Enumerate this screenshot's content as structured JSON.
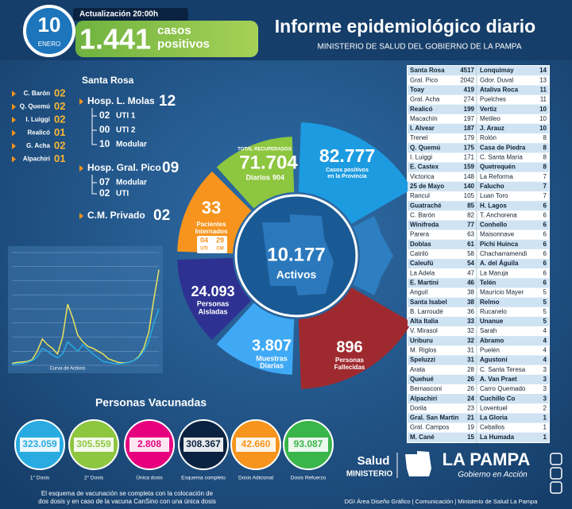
{
  "header": {
    "day": "10",
    "month": "ENERO",
    "update": "Actualización 20:00h",
    "cases": "1.441",
    "cases_label": [
      "casos",
      "positivos"
    ],
    "title": "Informe epidemiológico diario",
    "subtitle": "MINISTERIO DE SALUD DEL GOBIERNO DE LA PAMPA"
  },
  "santa_rosa": {
    "title": "Santa Rosa",
    "referrals": [
      {
        "place": "C. Barón",
        "count": "02"
      },
      {
        "place": "Q. Quemú",
        "count": "02"
      },
      {
        "place": "I. Luiggi",
        "count": "02"
      },
      {
        "place": "Realicó",
        "count": "01"
      },
      {
        "place": "G. Acha",
        "count": "02"
      },
      {
        "place": "Alpachiri",
        "count": "01"
      }
    ],
    "hospitals": [
      {
        "name": "Hosp. L. Molas",
        "count": "12",
        "units": [
          {
            "count": "02",
            "name": "UTI 1"
          },
          {
            "count": "00",
            "name": "UTI 2"
          },
          {
            "count": "10",
            "name": "Modular"
          }
        ]
      },
      {
        "name": "Hosp. Gral. Pico",
        "count": "09",
        "units": [
          {
            "count": "07",
            "name": "Modular"
          },
          {
            "count": "02",
            "name": "UTI"
          }
        ]
      },
      {
        "name": "C.M. Privado",
        "count": "02",
        "units": []
      }
    ]
  },
  "wheel": {
    "active": {
      "value": "10.177",
      "label": "Activos"
    },
    "recovered": {
      "label": "TOTAL RECUPERADOS",
      "value": "71.704",
      "daily_label": "Diarios",
      "daily": "904"
    },
    "positives": {
      "value": "82.777",
      "label": [
        "Casos positivos",
        "en la Provincia"
      ]
    },
    "hospitalized": {
      "value": "33",
      "label": [
        "Pacientes",
        "Internados"
      ],
      "uti": "04",
      "uti_label": "UTI",
      "cm": "29",
      "cm_label": "CM"
    },
    "isolated": {
      "value": "24.093",
      "label": [
        "Personas",
        "Aisladas"
      ]
    },
    "samples": {
      "value": "3.807",
      "label": [
        "Muestras",
        "Diarias"
      ]
    },
    "deaths": {
      "value": "896",
      "label": [
        "Personas",
        "Fallecidas"
      ]
    }
  },
  "localities": {
    "columns": [
      [
        [
          "Santa Rosa",
          4517
        ],
        [
          "Gral. Pico",
          2042
        ],
        [
          "Toay",
          419
        ],
        [
          "Gral. Acha",
          274
        ],
        [
          "Realicó",
          199
        ],
        [
          "Macachín",
          197
        ],
        [
          "I. Alvear",
          187
        ],
        [
          "Trenel",
          179
        ],
        [
          "Q. Quemú",
          175
        ],
        [
          "I. Luiggi",
          171
        ],
        [
          "E. Castex",
          159
        ],
        [
          "Victorica",
          148
        ],
        [
          "25 de Mayo",
          140
        ],
        [
          "Rancul",
          105
        ],
        [
          "Guatraché",
          85
        ],
        [
          "C. Barón",
          82
        ],
        [
          "Winifreda",
          77
        ],
        [
          "Parera",
          63
        ],
        [
          "Doblas",
          61
        ],
        [
          "Catriló",
          58
        ],
        [
          "Caleufú",
          54
        ],
        [
          "La Adela",
          47
        ],
        [
          "E. Martini",
          46
        ],
        [
          "Anguil",
          38
        ],
        [
          "Santa Isabel",
          38
        ],
        [
          "B. Larroudé",
          36
        ],
        [
          "Alta Italia",
          33
        ],
        [
          "V. Mirasol",
          32
        ],
        [
          "Uriburu",
          32
        ],
        [
          "M. Riglos",
          31
        ],
        [
          "Speluzzi",
          31
        ],
        [
          "Arata",
          28
        ],
        [
          "Quehué",
          26
        ],
        [
          "Bernasconi",
          26
        ],
        [
          "Alpachiri",
          24
        ],
        [
          "Dorila",
          23
        ],
        [
          "Gral. San Martín",
          21
        ],
        [
          "Gral. Campos",
          19
        ],
        [
          "M. Cané",
          15
        ]
      ],
      [
        [
          "Lonquimay",
          14
        ],
        [
          "Gdor. Duval",
          13
        ],
        [
          "Ataliva Roca",
          11
        ],
        [
          "Puelches",
          11
        ],
        [
          "Vertiz",
          10
        ],
        [
          "Metileo",
          10
        ],
        [
          "J. Arauz",
          10
        ],
        [
          "Rolón",
          8
        ],
        [
          "Casa de Piedra",
          8
        ],
        [
          "C. Santa María",
          8
        ],
        [
          "Quetrequén",
          8
        ],
        [
          "La Reforma",
          7
        ],
        [
          "Falucho",
          7
        ],
        [
          "Luan Toro",
          7
        ],
        [
          "H. Lagos",
          6
        ],
        [
          "T. Anchorena",
          6
        ],
        [
          "Conhello",
          6
        ],
        [
          "Maisonnave",
          6
        ],
        [
          "Pichi Huinca",
          6
        ],
        [
          "Chacharramendi",
          6
        ],
        [
          "A. del Águila",
          6
        ],
        [
          "La Maruja",
          6
        ],
        [
          "Telén",
          6
        ],
        [
          "Maurício Mayer",
          5
        ],
        [
          "Relmo",
          5
        ],
        [
          "Rucanelo",
          5
        ],
        [
          "Unanue",
          5
        ],
        [
          "Sarah",
          4
        ],
        [
          "Abramo",
          4
        ],
        [
          "Puelén",
          4
        ],
        [
          "Agustoni",
          4
        ],
        [
          "C. Santa Teresa",
          3
        ],
        [
          "A. Van Praet",
          3
        ],
        [
          "Carro Quemado",
          3
        ],
        [
          "Cuchillo Co",
          3
        ],
        [
          "Loventuel",
          2
        ],
        [
          "La Gloria",
          1
        ],
        [
          "Ceballos",
          1
        ],
        [
          "La Humada",
          1
        ]
      ]
    ]
  },
  "chart_data": {
    "type": "line",
    "title": "Curva de Activos",
    "ylim": [
      0,
      12000
    ],
    "series": [
      {
        "color": "#e8e35a",
        "values": [
          200,
          300,
          350,
          400,
          600,
          1500,
          2800,
          2200,
          1800,
          1200,
          3000,
          6500,
          5000,
          3200,
          2500,
          2000,
          1800,
          1500,
          1200,
          700,
          500,
          300,
          250,
          300,
          500,
          900,
          1800,
          3500,
          7000,
          10177
        ]
      },
      {
        "color": "#29abe2",
        "values": [
          100,
          150,
          200,
          300,
          500,
          900,
          1800,
          1500,
          1100,
          800,
          1200,
          2500,
          2000,
          1500,
          2200,
          1700,
          1200,
          800,
          400,
          300,
          200,
          150,
          200,
          300,
          500,
          800,
          1500,
          2500,
          4500,
          6000
        ]
      }
    ]
  },
  "vaccination": {
    "title": "Personas Vacunadas",
    "doses": [
      {
        "value": "323.059",
        "label": "1° Dosis",
        "color": "#29abe2"
      },
      {
        "value": "305.559",
        "label": "2° Dosis",
        "color": "#8dc63f"
      },
      {
        "value": "2.808",
        "label": "Única dosis",
        "color": "#e6007e"
      },
      {
        "value": "308.367",
        "label": "Esquema completo",
        "color": "#0b2341"
      },
      {
        "value": "42.660",
        "label": "Dosis Adicional",
        "color": "#f7941d"
      },
      {
        "value": "93.087",
        "label": "Dosis Refuerzo",
        "color": "#39b54a"
      }
    ],
    "note": [
      "El esquema de vacunación se completa con la colocación de",
      "dos dosis y en caso de la vacuna CanSino con una única dosis"
    ]
  },
  "footer": {
    "ministry": "Salud",
    "ministry_sub": "MINISTERIO",
    "province": "LA PAMPA",
    "slogan": "Gobierno en Acción",
    "credits": "DGI Área Diseño Gráfico | Comunicación | Ministerio de Salud La Pampa"
  }
}
